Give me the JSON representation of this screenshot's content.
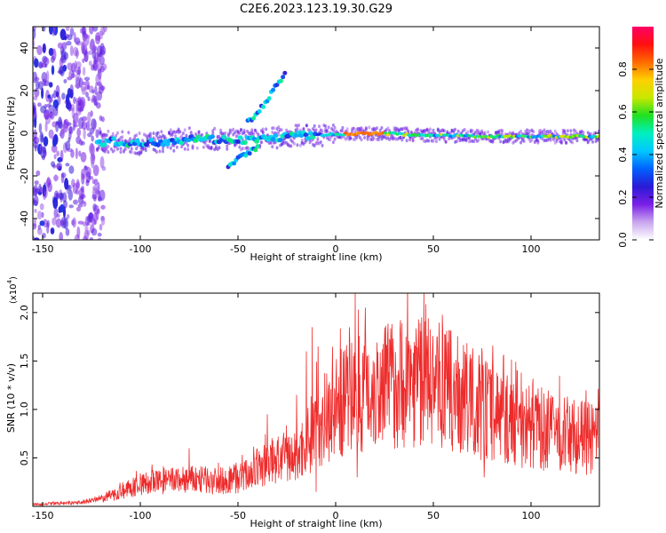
{
  "figure": {
    "title": "C2E6.2023.123.19.30.G29"
  },
  "colors": {
    "snr_line": "#ee2b2b",
    "axis": "#000000",
    "background": "#ffffff"
  },
  "chart_data": [
    {
      "type": "heatmap",
      "xlabel": "Height of straight line (km)",
      "ylabel": "Frequency (Hz)",
      "xlim": [
        -155,
        135
      ],
      "ylim": [
        -50,
        50
      ],
      "xticks": [
        -150,
        -100,
        -50,
        0,
        50,
        100
      ],
      "yticks": [
        -40,
        -20,
        0,
        20,
        40
      ],
      "colorbar": {
        "label": "Normalized spectral amplitude",
        "range": [
          0,
          1
        ],
        "ticks": [
          0.0,
          0.2,
          0.4,
          0.6,
          0.8
        ],
        "tick_labels": [
          "0.0",
          "0.2",
          "0.4",
          "0.6",
          "0.8"
        ],
        "colormap": [
          "#ffffff",
          "#c9a6ef",
          "#7a1fe6",
          "#2a1ad6",
          "#0061ff",
          "#00c8ff",
          "#00f0c0",
          "#20e020",
          "#c8e800",
          "#ffd000",
          "#ff6a00",
          "#ff1010",
          "#ff0066"
        ]
      },
      "ridge": [
        {
          "x": -125,
          "y": -4
        },
        {
          "x": -110,
          "y": -4
        },
        {
          "x": -100,
          "y": -5
        },
        {
          "x": -90,
          "y": -4
        },
        {
          "x": -80,
          "y": -3
        },
        {
          "x": -70,
          "y": -2
        },
        {
          "x": -60,
          "y": -3
        },
        {
          "x": -50,
          "y": -3
        },
        {
          "x": -40,
          "y": -3
        },
        {
          "x": -30,
          "y": -2
        },
        {
          "x": -20,
          "y": -1
        },
        {
          "x": -10,
          "y": -1
        },
        {
          "x": 0,
          "y": -0.5
        },
        {
          "x": 20,
          "y": 0
        },
        {
          "x": 50,
          "y": -1
        },
        {
          "x": 80,
          "y": -1.5
        },
        {
          "x": 110,
          "y": -1.5
        },
        {
          "x": 135,
          "y": -1.5
        }
      ],
      "branches": [
        {
          "label": "",
          "points": [
            {
              "x": -55,
              "y": -16
            },
            {
              "x": -50,
              "y": -12
            },
            {
              "x": -45,
              "y": -9
            },
            {
              "x": -40,
              "y": -7
            }
          ]
        },
        {
          "label": "",
          "points": [
            {
              "x": -45,
              "y": 5
            },
            {
              "x": -38,
              "y": 12
            },
            {
              "x": -32,
              "y": 20
            },
            {
              "x": -26,
              "y": 28
            }
          ]
        }
      ],
      "scatter_region": {
        "x": [
          -155,
          -118
        ],
        "y": [
          -50,
          50
        ]
      }
    },
    {
      "type": "line",
      "xlabel": "Height of straight line (km)",
      "ylabel": "SNR (10 * v/v)",
      "yscale_label": "(x10",
      "yscale_exponent": "4",
      "xlim": [
        -155,
        135
      ],
      "ylim": [
        0,
        22000
      ],
      "xticks": [
        -150,
        -100,
        -50,
        0,
        50,
        100
      ],
      "yticks": [
        5000,
        10000,
        15000,
        20000
      ],
      "ytick_labels": [
        "0.5",
        "1.0",
        "1.5",
        "2.0"
      ],
      "envelope": [
        {
          "x": -155,
          "y": 200
        },
        {
          "x": -130,
          "y": 400
        },
        {
          "x": -120,
          "y": 800
        },
        {
          "x": -110,
          "y": 1500
        },
        {
          "x": -100,
          "y": 2300
        },
        {
          "x": -90,
          "y": 2600
        },
        {
          "x": -80,
          "y": 2800
        },
        {
          "x": -70,
          "y": 2800
        },
        {
          "x": -60,
          "y": 2700
        },
        {
          "x": -50,
          "y": 2900
        },
        {
          "x": -40,
          "y": 4000
        },
        {
          "x": -30,
          "y": 5000
        },
        {
          "x": -20,
          "y": 5200
        },
        {
          "x": -10,
          "y": 8500
        },
        {
          "x": 0,
          "y": 10500
        },
        {
          "x": 10,
          "y": 12000
        },
        {
          "x": 20,
          "y": 12500
        },
        {
          "x": 30,
          "y": 13000
        },
        {
          "x": 40,
          "y": 13500
        },
        {
          "x": 50,
          "y": 13000
        },
        {
          "x": 60,
          "y": 12000
        },
        {
          "x": 70,
          "y": 11000
        },
        {
          "x": 80,
          "y": 10000
        },
        {
          "x": 90,
          "y": 9000
        },
        {
          "x": 100,
          "y": 8500
        },
        {
          "x": 110,
          "y": 8000
        },
        {
          "x": 120,
          "y": 7500
        },
        {
          "x": 135,
          "y": 7000
        }
      ],
      "peaks": [
        {
          "x": -100,
          "y": 3400
        },
        {
          "x": -75,
          "y": 6000
        },
        {
          "x": -60,
          "y": 4500
        },
        {
          "x": -35,
          "y": 9500
        },
        {
          "x": -20,
          "y": 11500
        },
        {
          "x": -15,
          "y": 16000
        },
        {
          "x": -12,
          "y": 18500
        },
        {
          "x": -9,
          "y": 16500
        },
        {
          "x": 10,
          "y": 22000
        },
        {
          "x": 25,
          "y": 17500
        },
        {
          "x": 44,
          "y": 19500
        },
        {
          "x": 52,
          "y": 17500
        },
        {
          "x": 75,
          "y": 15800
        },
        {
          "x": 95,
          "y": 13800
        },
        {
          "x": 128,
          "y": 10500
        }
      ],
      "dips": [
        {
          "x": 11,
          "y": 3000
        },
        {
          "x": 76,
          "y": 3000
        },
        {
          "x": -10,
          "y": 1500
        }
      ]
    }
  ]
}
